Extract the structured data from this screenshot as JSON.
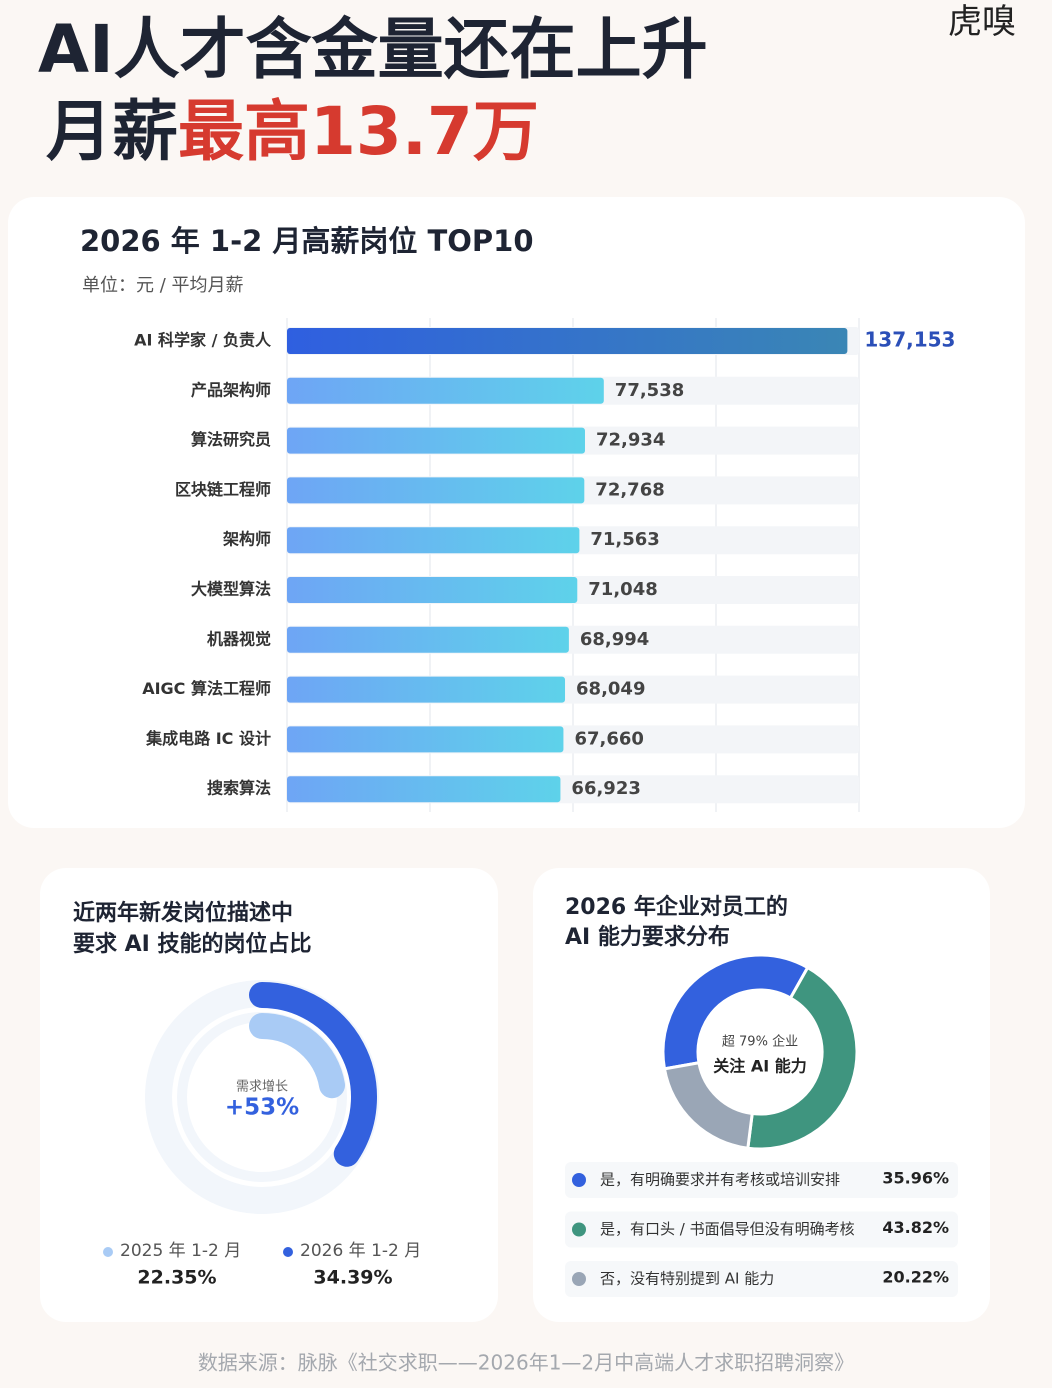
{
  "logo": "虎嗅",
  "header": {
    "line1": "AI人才含金量还在上升",
    "line2_prefix": "月薪",
    "line2_highlight": "最高13.7万"
  },
  "chart_data": [
    {
      "type": "bar",
      "title": "2026 年 1-2 月高薪岗位 TOP10",
      "subtitle": "单位：元 / 平均月薪",
      "categories": [
        "AI 科学家 / 负责人",
        "产品架构师",
        "算法研究员",
        "区块链工程师",
        "架构师",
        "大模型算法",
        "机器视觉",
        "AIGC 算法工程师",
        "集成电路 IC 设计",
        "搜索算法"
      ],
      "values": [
        137153,
        77538,
        72934,
        72768,
        71563,
        71048,
        68994,
        68049,
        67660,
        66923
      ],
      "value_labels": [
        "137,153",
        "77,538",
        "72,934",
        "72,768",
        "71,563",
        "71,048",
        "68,994",
        "68,049",
        "67,660",
        "66,923"
      ],
      "xlim": [
        0,
        140000
      ],
      "xticks": [
        0,
        35000,
        70000,
        105000,
        140000
      ],
      "grid": true
    },
    {
      "type": "radial",
      "title": [
        "近两年新发岗位描述中",
        "要求 AI 技能的岗位占比"
      ],
      "annotation": {
        "label": "需求增长",
        "value": "+53%"
      },
      "ylim": [
        0,
        100
      ],
      "series": [
        {
          "name": "2025 年 1-2 月",
          "color": "#a9cbf5",
          "values": [
            22.35
          ],
          "value_labels": [
            "22.35%"
          ]
        },
        {
          "name": "2026 年 1-2 月",
          "color": "#3361de",
          "values": [
            34.39
          ],
          "value_labels": [
            "34.39%"
          ]
        }
      ]
    },
    {
      "type": "donut",
      "title": [
        "2026 年企业对员工的",
        "AI 能力要求分布"
      ],
      "annotation": {
        "label": "超 79% 企业",
        "value": "关注 AI 能力"
      },
      "categories": [
        "是，有明确要求并有考核或培训安排",
        "是，有口头 / 书面倡导但没有明确考核",
        "否，没有特别提到 AI 能力"
      ],
      "values": [
        35.96,
        43.82,
        20.22
      ],
      "value_labels": [
        "35.96%",
        "43.82%",
        "20.22%"
      ],
      "colors": [
        "#3361de",
        "#3f957f",
        "#9aa6b6"
      ]
    }
  ],
  "source": "数据来源：脉脉《社交求职——2026年1—2月中高端人才求职招聘洞察》"
}
